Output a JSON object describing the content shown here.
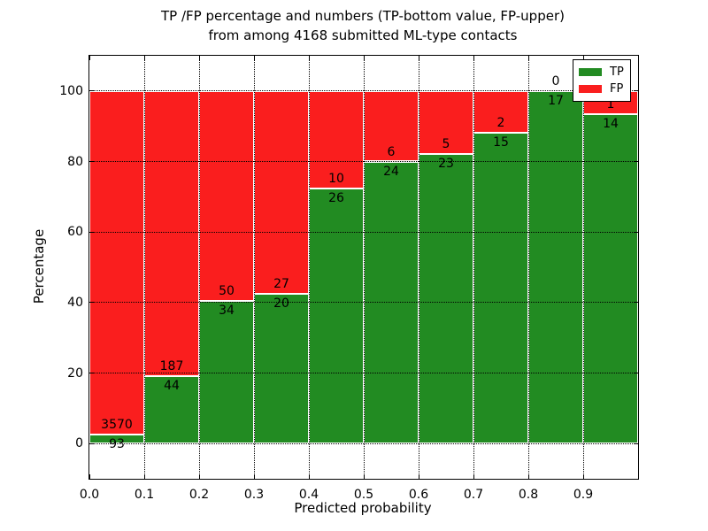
{
  "title": {
    "line1": "TP /FP percentage and numbers (TP-bottom value, FP-upper)",
    "line2": "from among 4168 submitted ML-type contacts"
  },
  "axes": {
    "ylabel": "Percentage",
    "xlabel": "Predicted probability",
    "yticks": [
      0,
      20,
      40,
      60,
      80,
      100
    ],
    "xtick_labels": [
      "0.0",
      "0.1",
      "0.2",
      "0.3",
      "0.4",
      "0.5",
      "0.6",
      "0.7",
      "0.8",
      "0.9"
    ]
  },
  "legend": {
    "items": [
      {
        "label": "TP",
        "color": "#228b22"
      },
      {
        "label": "FP",
        "color": "#fa1e1e"
      }
    ],
    "position": "upper right"
  },
  "chart_data": {
    "type": "bar",
    "stacked": true,
    "normalized_to_percent": true,
    "title": "TP /FP percentage and numbers (TP-bottom value, FP-upper) from among 4168 submitted ML-type contacts",
    "xlabel": "Predicted probability",
    "ylabel": "Percentage",
    "xlim": [
      0.0,
      1.0
    ],
    "ylim": [
      -10,
      110
    ],
    "bin_width": 0.1,
    "bins": [
      [
        0.0,
        0.1
      ],
      [
        0.1,
        0.2
      ],
      [
        0.2,
        0.3
      ],
      [
        0.3,
        0.4
      ],
      [
        0.4,
        0.5
      ],
      [
        0.5,
        0.6
      ],
      [
        0.6,
        0.7
      ],
      [
        0.7,
        0.8
      ],
      [
        0.8,
        0.9
      ],
      [
        0.9,
        1.0
      ]
    ],
    "series": [
      {
        "name": "TP",
        "color": "#228b22",
        "counts": [
          93,
          44,
          34,
          20,
          26,
          24,
          23,
          15,
          17,
          14
        ]
      },
      {
        "name": "FP",
        "color": "#fa1e1e",
        "counts": [
          3570,
          187,
          50,
          27,
          10,
          6,
          5,
          2,
          0,
          1
        ]
      }
    ],
    "tp_percent_of_bin": [
      2.5,
      19.0,
      40.5,
      42.6,
      72.2,
      80.0,
      82.1,
      88.2,
      100.0,
      93.3
    ],
    "total_contacts": 4168,
    "grid": "dotted, both axes, drawn above bars",
    "legend_position": "upper right"
  }
}
